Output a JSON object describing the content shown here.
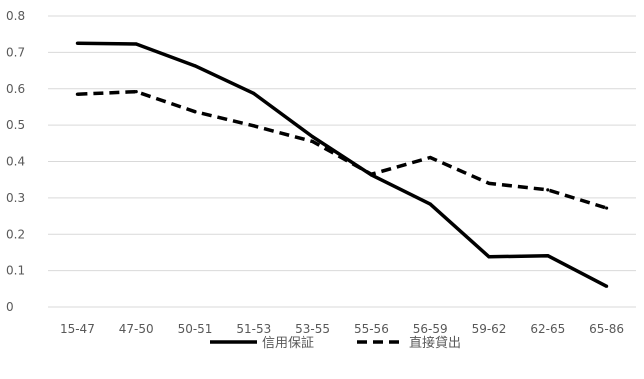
{
  "chart_data": {
    "type": "line",
    "title": "",
    "xlabel": "",
    "ylabel": "",
    "ylim": [
      0,
      0.8
    ],
    "yticks": [
      "0",
      "0.1",
      "0.2",
      "0.3",
      "0.4",
      "0.5",
      "0.6",
      "0.7",
      "0.8"
    ],
    "ytick_values": [
      0,
      0.1,
      0.2,
      0.3,
      0.4,
      0.5,
      0.6,
      0.7,
      0.8
    ],
    "grid": true,
    "legend_position": "bottom",
    "categories": [
      "15-47",
      "47-50",
      "50-51",
      "51-53",
      "53-55",
      "55-56",
      "56-59",
      "59-62",
      "62-65",
      "65-86"
    ],
    "series": [
      {
        "name": "信用保証",
        "style": "solid",
        "color": "#000000",
        "values": [
          0.725,
          0.723,
          0.663,
          0.587,
          0.468,
          0.363,
          0.283,
          0.138,
          0.141,
          0.057
        ]
      },
      {
        "name": "直接貸出",
        "style": "dashed",
        "color": "#000000",
        "values": [
          0.585,
          0.592,
          0.537,
          0.498,
          0.455,
          0.365,
          0.411,
          0.34,
          0.322,
          0.272
        ]
      }
    ]
  }
}
